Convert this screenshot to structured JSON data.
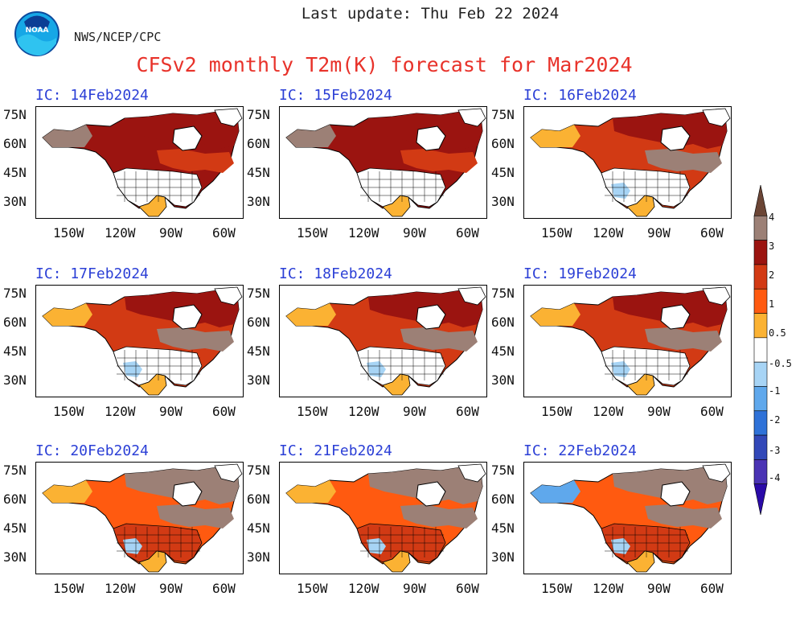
{
  "header": {
    "last_update": "Last update: Thu Feb 22 2024",
    "logo_text": "NOAA",
    "agency": "NWS/NCEP/CPC",
    "title": "CFSv2 monthly T2m(K) forecast for Mar2024"
  },
  "panels": [
    {
      "ic": "IC: 14Feb2024",
      "pattern": "warm_early"
    },
    {
      "ic": "IC: 15Feb2024",
      "pattern": "warm_early"
    },
    {
      "ic": "IC: 16Feb2024",
      "pattern": "warm_mid"
    },
    {
      "ic": "IC: 17Feb2024",
      "pattern": "warm_mid"
    },
    {
      "ic": "IC: 18Feb2024",
      "pattern": "warm_mid"
    },
    {
      "ic": "IC: 19Feb2024",
      "pattern": "warm_mid"
    },
    {
      "ic": "IC: 20Feb2024",
      "pattern": "warm_late"
    },
    {
      "ic": "IC: 21Feb2024",
      "pattern": "warm_late"
    },
    {
      "ic": "IC: 22Feb2024",
      "pattern": "cool_west"
    }
  ],
  "axes": {
    "lat_ticks": [
      "75N",
      "60N",
      "45N",
      "30N"
    ],
    "lon_ticks": [
      "150W",
      "120W",
      "90W",
      "60W"
    ]
  },
  "colorbar": {
    "labels": [
      "4",
      "3",
      "2",
      "1",
      "0.5",
      "-0.5",
      "-1",
      "-2",
      "-3",
      "-4"
    ],
    "colors": [
      "#6b4535",
      "#9c8076",
      "#9b1410",
      "#d23a14",
      "#ff5a10",
      "#fbb233",
      "#ffffff",
      "#a7d4f5",
      "#5fa8ec",
      "#2f72d8",
      "#3248b8",
      "#4a33b4",
      "#2a0aa8"
    ]
  }
}
